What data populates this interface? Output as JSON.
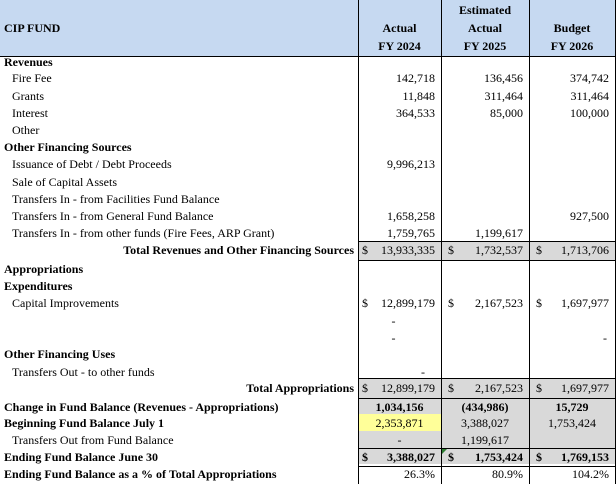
{
  "header": {
    "title": "CIP FUND",
    "col1": [
      "Actual",
      "FY 2024"
    ],
    "col2": [
      "Estimated",
      "Actual",
      "FY 2025"
    ],
    "col3": [
      "Budget",
      "FY 2026"
    ]
  },
  "rows": {
    "revenues": "Revenues",
    "fire_fee": {
      "label": "Fire Fee",
      "a": "142,718",
      "b": "136,456",
      "c": "374,742"
    },
    "grants": {
      "label": "Grants",
      "a": "11,848",
      "b": "311,464",
      "c": "311,464"
    },
    "interest": {
      "label": "Interest",
      "a": "364,533",
      "b": "85,000",
      "c": "100,000"
    },
    "other": {
      "label": "Other"
    },
    "ofs": "Other Financing Sources",
    "debt": {
      "label": "Issuance of Debt / Debt Proceeds",
      "a": "9,996,213"
    },
    "sale": {
      "label": "Sale of Capital Assets"
    },
    "tin_fac": {
      "label": "Transfers In - from Facilities Fund Balance"
    },
    "tin_gen": {
      "label": "Transfers In - from General Fund Balance",
      "a": "1,658,258",
      "c": "927,500"
    },
    "tin_oth": {
      "label": "Transfers In - from other funds (Fire Fees, ARP Grant)",
      "a": "1,759,765",
      "b": "1,199,617"
    },
    "tot_rev": {
      "label": "Total Revenues and Other Financing Sources",
      "a": "13,933,335",
      "b": "1,732,537",
      "c": "1,713,706"
    },
    "approps": "Appropriations",
    "expend": "Expenditures",
    "capimp": {
      "label": "Capital Improvements",
      "a": "12,899,179",
      "b": "2,167,523",
      "c": "1,697,977"
    },
    "dash": "-",
    "ofu": "Other Financing Uses",
    "tout": {
      "label": "Transfers Out - to other funds",
      "a": "-"
    },
    "tot_app": {
      "label": "Total Appropriations",
      "a": "12,899,179",
      "b": "2,167,523",
      "c": "1,697,977"
    },
    "change": {
      "label": "Change in Fund Balance (Revenues - Appropriations)",
      "a": "1,034,156",
      "b": "(434,986)",
      "c": "15,729"
    },
    "begin": {
      "label": "Beginning Fund Balance July 1",
      "a": "2,353,871",
      "b": "3,388,027",
      "c": "1,753,424"
    },
    "tout_fb": {
      "label": "Transfers Out from Fund Balance",
      "a": "-",
      "b": "1,199,617"
    },
    "end": {
      "label": "Ending Fund Balance June 30",
      "a": "3,388,027",
      "b": "1,753,424",
      "c": "1,769,153"
    },
    "endpct": {
      "label": "Ending Fund Balance as a % of Total Appropriations",
      "a": "26.3%",
      "b": "80.9%",
      "c": "104.2%"
    },
    "currency": "$"
  }
}
